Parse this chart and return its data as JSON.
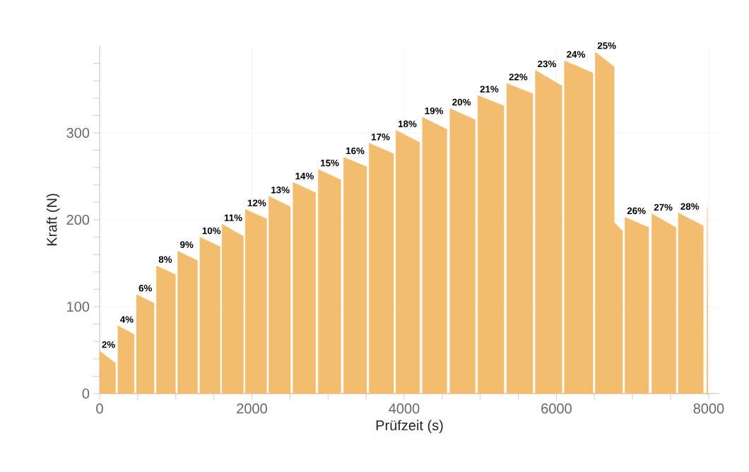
{
  "chart_data": {
    "type": "area",
    "xlabel": "Prüfzeit (s)",
    "ylabel": "Kraft (N)",
    "grid": true,
    "xlim": [
      0,
      8140
    ],
    "ylim": [
      0,
      400
    ],
    "xticks": [
      0,
      {
        "value": 500,
        "label": null
      },
      {
        "value": 1000,
        "label": null
      },
      {
        "value": 1500,
        "label": null
      },
      2000,
      {
        "value": 2500,
        "label": null
      },
      {
        "value": 3000,
        "label": null
      },
      {
        "value": 3500,
        "label": null
      },
      4000,
      {
        "value": 4500,
        "label": null
      },
      {
        "value": 5000,
        "label": null
      },
      {
        "value": 5500,
        "label": null
      },
      6000,
      {
        "value": 6500,
        "label": null
      },
      {
        "value": 7000,
        "label": null
      },
      {
        "value": 7500,
        "label": null
      },
      8000
    ],
    "yticks": [
      0,
      {
        "value": 20,
        "label": null
      },
      {
        "value": 40,
        "label": null
      },
      {
        "value": 60,
        "label": null
      },
      {
        "value": 80,
        "label": null
      },
      100,
      {
        "value": 120,
        "label": null
      },
      {
        "value": 140,
        "label": null
      },
      {
        "value": 160,
        "label": null
      },
      {
        "value": 180,
        "label": null
      },
      200,
      {
        "value": 220,
        "label": null
      },
      {
        "value": 240,
        "label": null
      },
      {
        "value": 260,
        "label": null
      },
      {
        "value": 280,
        "label": null
      },
      300,
      {
        "value": 320,
        "label": null
      },
      {
        "value": 340,
        "label": null
      },
      {
        "value": 360,
        "label": null
      },
      {
        "value": 380,
        "label": null
      }
    ],
    "series": [
      {
        "color": "#f2bd6f",
        "x": [
          0,
          0,
          209,
          209,
          240,
          240,
          453,
          453,
          484,
          484,
          715,
          715,
          746,
          746,
          996,
          996,
          1027,
          1027,
          1286,
          1286,
          1317,
          1317,
          1582,
          1582,
          1607,
          1607,
          1888,
          1888,
          1913,
          1913,
          2194,
          2194,
          2222,
          2222,
          2506,
          2506,
          2540,
          2540,
          2837,
          2837,
          2871,
          2871,
          3168,
          3168,
          3205,
          3205,
          3508,
          3508,
          3539,
          3539,
          3861,
          3861,
          3891,
          3891,
          4203,
          4203,
          4240,
          4240,
          4561,
          4561,
          4602,
          4602,
          4935,
          4935,
          4967,
          4967,
          5310,
          5310,
          5347,
          5347,
          5690,
          5690,
          5724,
          5724,
          6073,
          6073,
          6105,
          6105,
          6479,
          6479,
          6510,
          6510,
          6759,
          6759,
          6869,
          6869,
          6900,
          6900,
          7212,
          7212,
          7252,
          7252,
          7570,
          7570,
          7601,
          7601,
          7929,
          7929,
          7975,
          7982,
          7990
        ],
        "values": [
          0,
          49,
          35,
          0,
          0,
          78,
          68,
          0,
          0,
          114,
          104,
          0,
          0,
          147,
          137,
          0,
          0,
          164,
          153,
          0,
          0,
          180,
          169,
          0,
          0,
          195,
          181,
          0,
          0,
          212,
          201,
          0,
          0,
          227,
          215,
          0,
          0,
          243,
          231,
          0,
          0,
          258,
          246,
          0,
          0,
          272,
          261,
          0,
          0,
          288,
          276,
          0,
          0,
          303,
          289,
          0,
          0,
          318,
          304,
          0,
          0,
          328,
          315,
          0,
          0,
          343,
          331,
          0,
          0,
          357,
          345,
          0,
          0,
          372,
          354,
          0,
          0,
          383,
          369,
          0,
          0,
          393,
          376,
          197,
          187,
          0,
          0,
          203,
          191,
          0,
          0,
          207,
          191,
          0,
          0,
          208,
          193,
          0,
          0,
          214,
          0
        ]
      }
    ],
    "annotations": [
      {
        "text": "2%",
        "x": 0,
        "y": 49
      },
      {
        "text": "4%",
        "x": 240,
        "y": 78
      },
      {
        "text": "6%",
        "x": 484,
        "y": 114
      },
      {
        "text": "8%",
        "x": 746,
        "y": 147
      },
      {
        "text": "9%",
        "x": 1027,
        "y": 164
      },
      {
        "text": "10%",
        "x": 1317,
        "y": 180
      },
      {
        "text": "11%",
        "x": 1607,
        "y": 195
      },
      {
        "text": "12%",
        "x": 1913,
        "y": 212
      },
      {
        "text": "13%",
        "x": 2222,
        "y": 227
      },
      {
        "text": "14%",
        "x": 2540,
        "y": 243
      },
      {
        "text": "15%",
        "x": 2871,
        "y": 258
      },
      {
        "text": "16%",
        "x": 3205,
        "y": 272
      },
      {
        "text": "17%",
        "x": 3539,
        "y": 288
      },
      {
        "text": "18%",
        "x": 3891,
        "y": 303
      },
      {
        "text": "19%",
        "x": 4240,
        "y": 318
      },
      {
        "text": "20%",
        "x": 4602,
        "y": 328
      },
      {
        "text": "21%",
        "x": 4967,
        "y": 343
      },
      {
        "text": "22%",
        "x": 5347,
        "y": 357
      },
      {
        "text": "23%",
        "x": 5724,
        "y": 372
      },
      {
        "text": "24%",
        "x": 6105,
        "y": 383
      },
      {
        "text": "25%",
        "x": 6510,
        "y": 393
      },
      {
        "text": "26%",
        "x": 6900,
        "y": 203
      },
      {
        "text": "27%",
        "x": 7252,
        "y": 207
      },
      {
        "text": "28%",
        "x": 7601,
        "y": 208
      }
    ]
  }
}
